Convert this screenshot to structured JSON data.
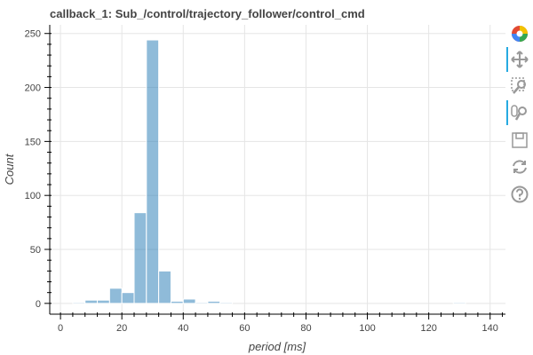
{
  "chart_data": {
    "type": "bar",
    "title": "callback_1: Sub_/control/trajectory_follower/control_cmd",
    "xlabel": "period [ms]",
    "ylabel": "Count",
    "xlim": [
      -3.5,
      145
    ],
    "ylim": [
      -10,
      258
    ],
    "x_ticks": [
      0,
      20,
      40,
      60,
      80,
      100,
      120,
      140
    ],
    "y_ticks": [
      0,
      50,
      100,
      150,
      200,
      250
    ],
    "bin_width": 4,
    "bins": [
      {
        "x0": 4,
        "x1": 8,
        "count": 1
      },
      {
        "x0": 8,
        "x1": 12,
        "count": 3
      },
      {
        "x0": 12,
        "x1": 16,
        "count": 3
      },
      {
        "x0": 16,
        "x1": 20,
        "count": 14
      },
      {
        "x0": 20,
        "x1": 24,
        "count": 10
      },
      {
        "x0": 24,
        "x1": 28,
        "count": 84
      },
      {
        "x0": 28,
        "x1": 32,
        "count": 244
      },
      {
        "x0": 32,
        "x1": 36,
        "count": 30
      },
      {
        "x0": 36,
        "x1": 40,
        "count": 2
      },
      {
        "x0": 40,
        "x1": 44,
        "count": 4
      },
      {
        "x0": 44,
        "x1": 48,
        "count": 1
      },
      {
        "x0": 48,
        "x1": 52,
        "count": 2
      },
      {
        "x0": 52,
        "x1": 56,
        "count": 1
      },
      {
        "x0": 128,
        "x1": 132,
        "count": 1
      }
    ],
    "bar_color": "#1f77b4",
    "grid": true,
    "legend": "none"
  },
  "toolbar": {
    "tools": [
      {
        "name": "bokeh-logo-icon",
        "active": false
      },
      {
        "name": "pan-tool-icon",
        "active": true
      },
      {
        "name": "box-zoom-tool-icon",
        "active": false
      },
      {
        "name": "wheel-zoom-tool-icon",
        "active": true
      },
      {
        "name": "save-tool-icon",
        "active": false
      },
      {
        "name": "reset-tool-icon",
        "active": false
      },
      {
        "name": "help-tool-icon",
        "active": false
      }
    ],
    "icon_color": "#999999",
    "active_color": "#26aae1"
  }
}
